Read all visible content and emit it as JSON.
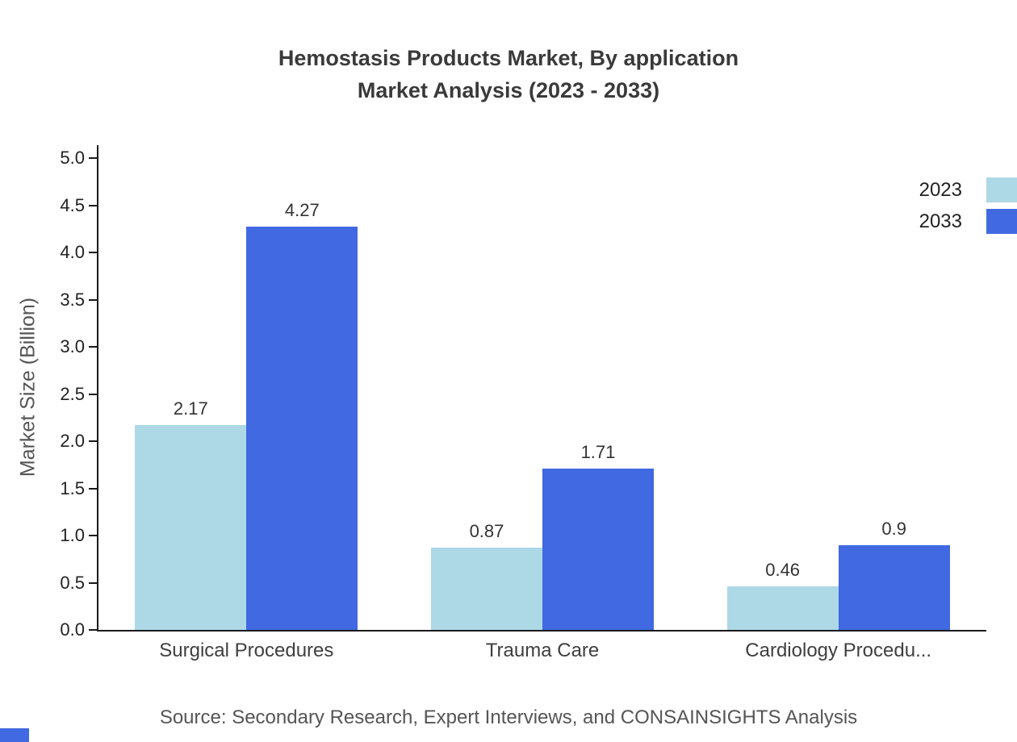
{
  "title": {
    "line1": "Hemostasis Products Market, By application",
    "line2": "Market Analysis (2023 - 2033)"
  },
  "chart_data": {
    "type": "bar",
    "categories": [
      "Surgical Procedures",
      "Trauma Care",
      "Cardiology Procedu..."
    ],
    "series": [
      {
        "name": "2023",
        "color": "#add8e6",
        "values": [
          2.17,
          0.87,
          0.46
        ]
      },
      {
        "name": "2033",
        "color": "#4169e1",
        "values": [
          4.27,
          1.71,
          0.9
        ]
      }
    ],
    "title": "Hemostasis Products Market, By application Market Analysis (2023 - 2033)",
    "xlabel": "",
    "ylabel": "Market Size (Billion)",
    "ylim": [
      0,
      5
    ],
    "ytick_step": 0.5,
    "grid": false,
    "legend_position": "top-right"
  },
  "source": "Source: Secondary Research, Expert Interviews, and CONSAINSIGHTS Analysis"
}
